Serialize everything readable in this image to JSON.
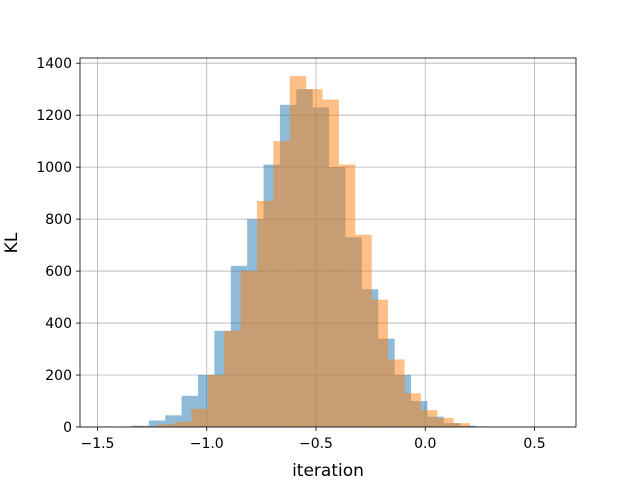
{
  "chart_data": {
    "type": "bar",
    "subtype": "overlaid-histogram",
    "title": "",
    "xlabel": "iteration",
    "ylabel": "KL",
    "xlim": [
      -1.58,
      0.69
    ],
    "ylim": [
      0,
      1420
    ],
    "grid": true,
    "legend": "none",
    "x_ticks": [
      -1.5,
      -1.0,
      -0.5,
      0.0,
      0.5
    ],
    "x_tick_labels": [
      "−1.5",
      "−1.0",
      "−0.5",
      "0.0",
      "0.5"
    ],
    "y_ticks": [
      0,
      200,
      400,
      600,
      800,
      1000,
      1200,
      1400
    ],
    "y_tick_labels": [
      "0",
      "200",
      "400",
      "600",
      "800",
      "1000",
      "1200",
      "1400"
    ],
    "series": [
      {
        "color": "#1f77b4",
        "opacity": 0.5,
        "bin_start": -1.49,
        "bin_width": 0.075,
        "counts": [
          2,
          0,
          5,
          25,
          45,
          120,
          200,
          370,
          620,
          800,
          1010,
          1240,
          1300,
          1230,
          1000,
          730,
          530,
          340,
          200,
          100,
          40,
          15,
          5,
          2
        ]
      },
      {
        "color": "#ff7f0e",
        "opacity": 0.5,
        "bin_start": -1.37,
        "bin_width": 0.075,
        "counts": [
          3,
          3,
          10,
          20,
          70,
          200,
          370,
          600,
          870,
          1100,
          1350,
          1300,
          1260,
          1010,
          740,
          490,
          260,
          130,
          65,
          35,
          15
        ]
      }
    ]
  }
}
